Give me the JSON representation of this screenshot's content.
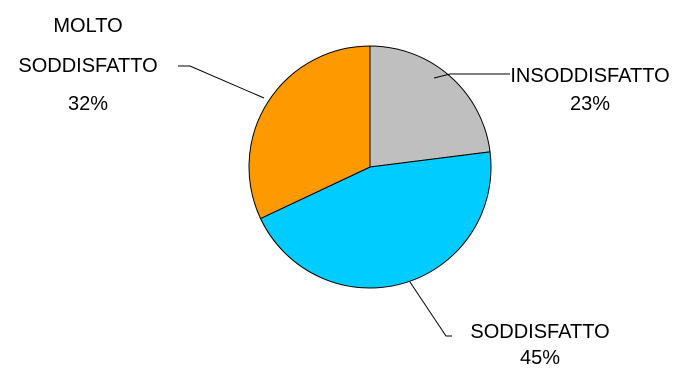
{
  "chart_data": {
    "type": "pie",
    "slices": [
      {
        "label": "INSODDISFATTO",
        "value": 23,
        "value_label": "23%",
        "color": "#bfbfbf"
      },
      {
        "label": "SODDISFATTO",
        "value": 45,
        "value_label": "45%",
        "color": "#00ccff"
      },
      {
        "label": "MOLTO SODDISFATTO",
        "value": 32,
        "value_label": "32%",
        "color": "#ff9900"
      }
    ],
    "start": "top, clockwise",
    "legend": "none",
    "title": ""
  }
}
